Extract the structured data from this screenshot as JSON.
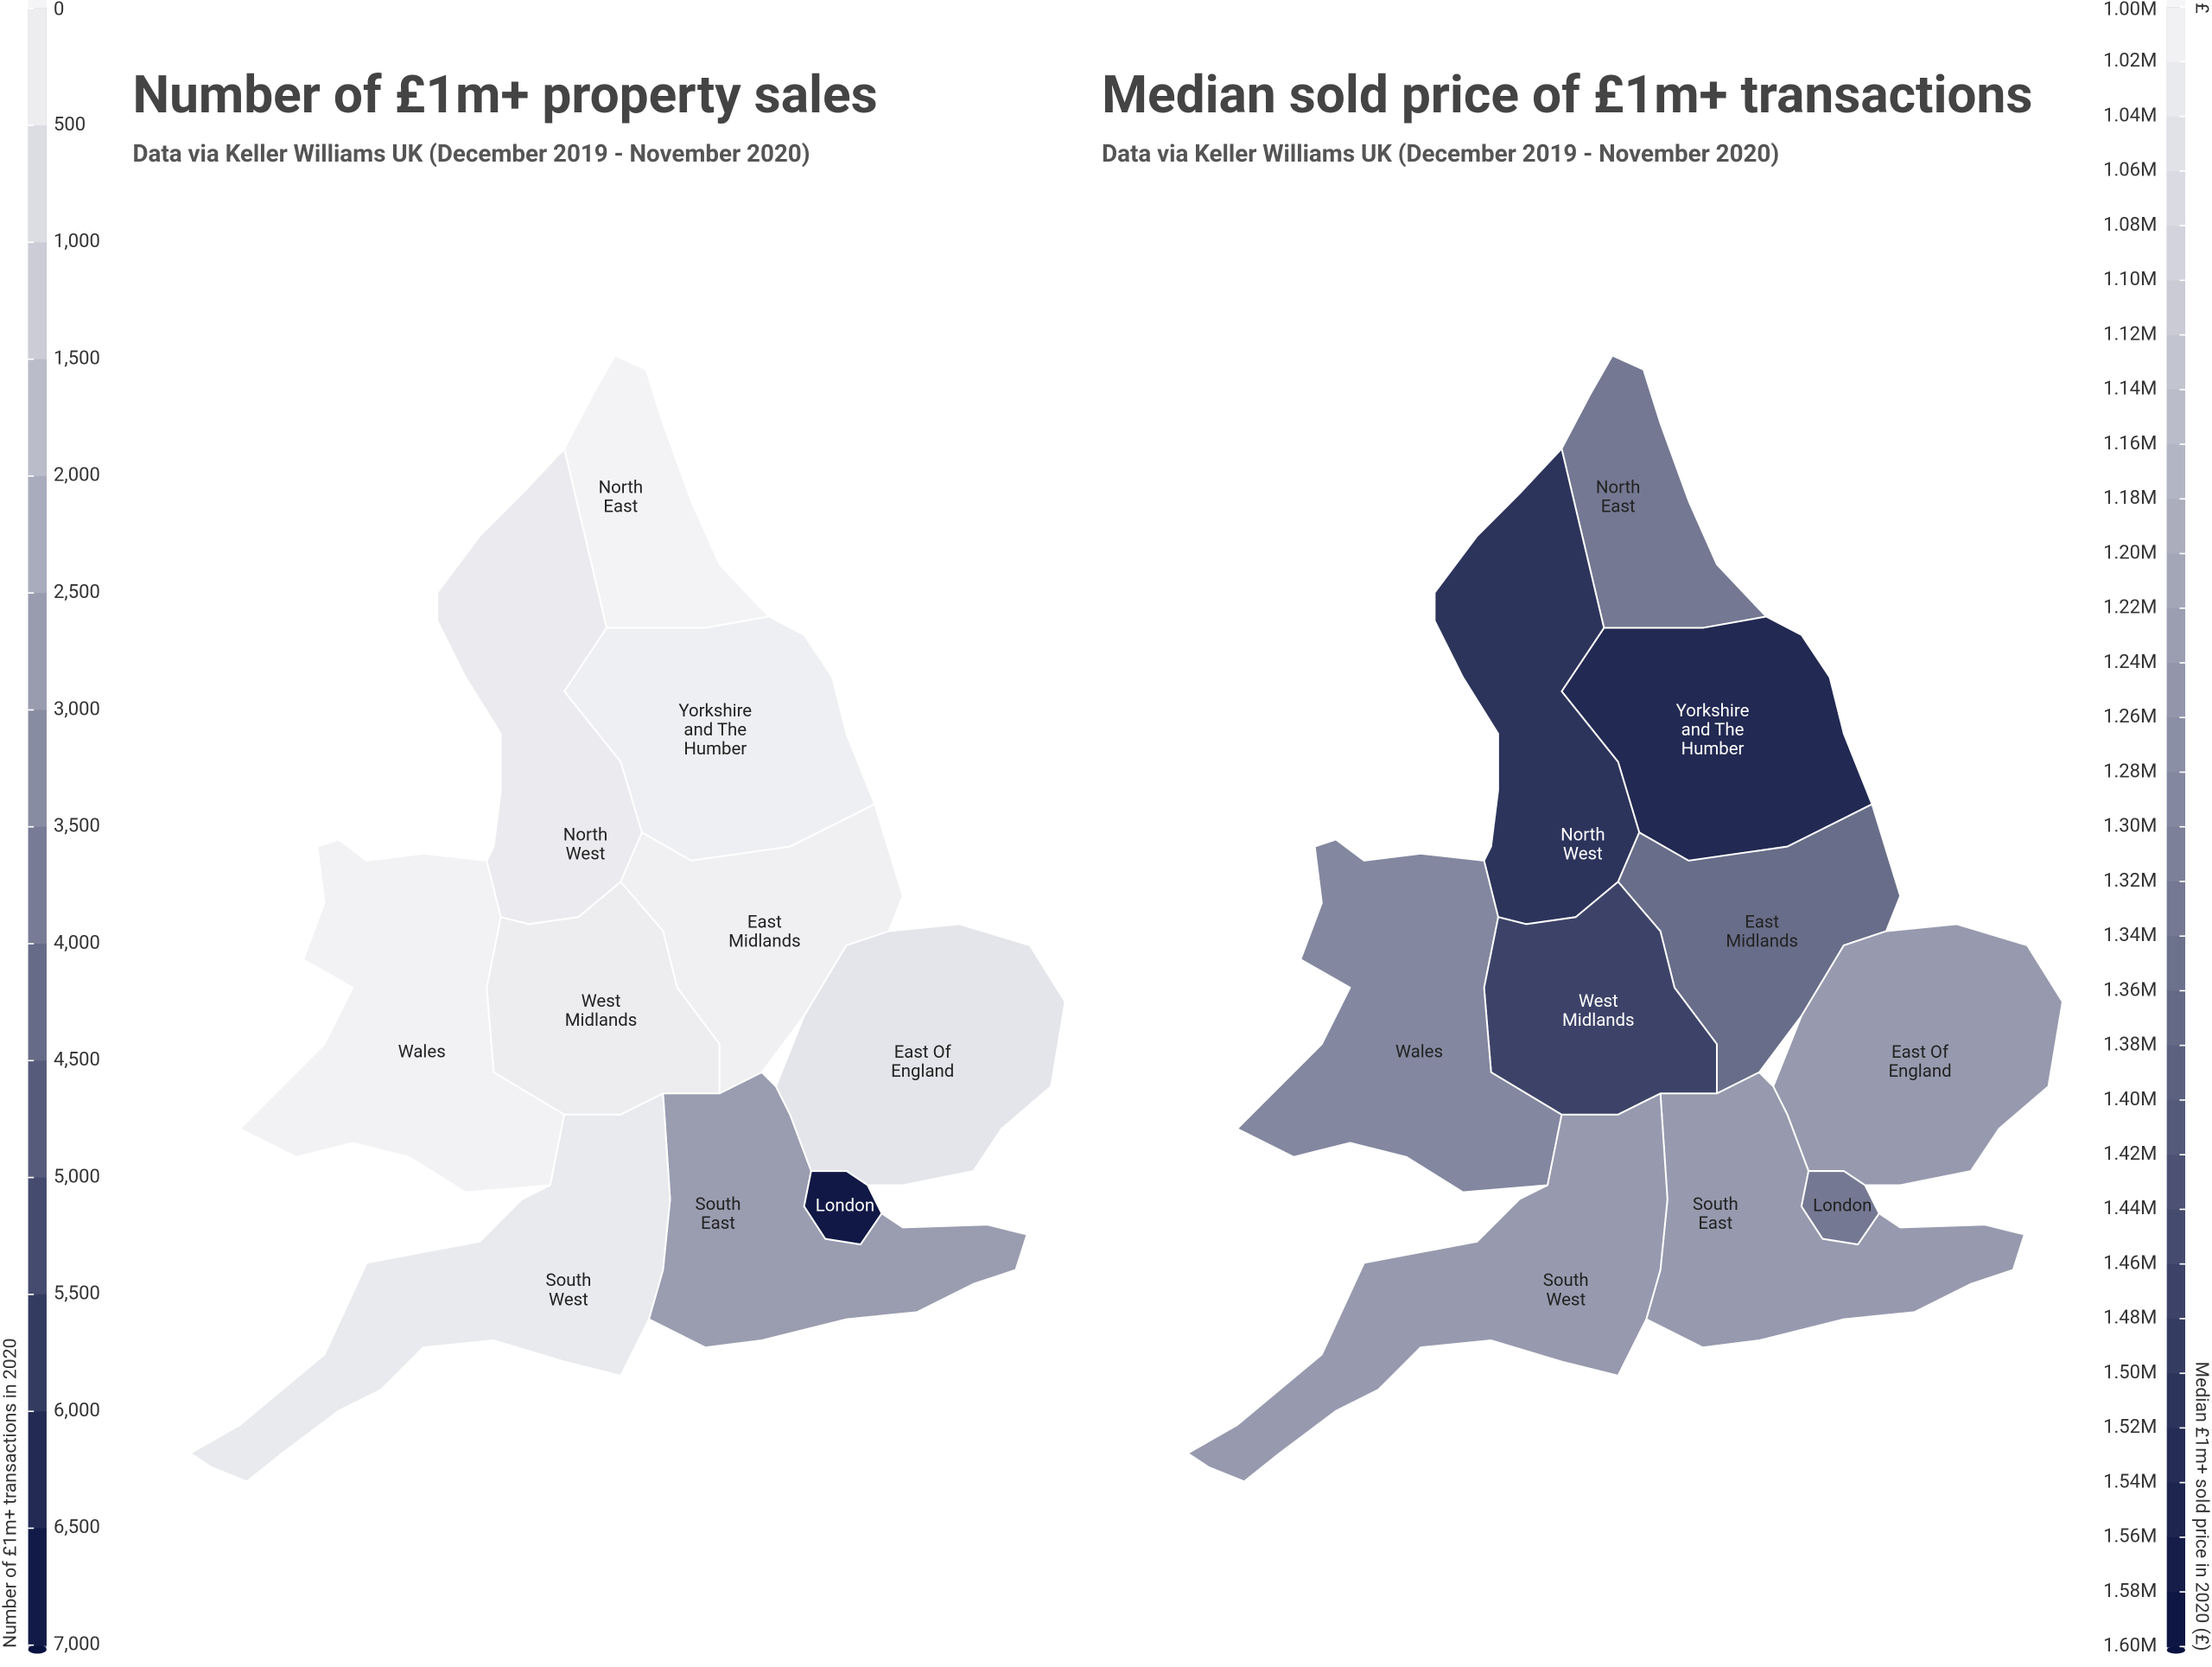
{
  "maps": [
    {
      "title": "Number of £1m+ property sales",
      "subtitle": "Data via Keller Williams UK (December 2019 - November 2020)",
      "legend": {
        "title": "Number of £1m+ transactions in 2020",
        "lim": [
          0,
          7000
        ],
        "ticks": [
          0,
          500,
          {
            "value": 1000,
            "label": "1,000"
          },
          {
            "value": 1500,
            "label": "1,500"
          },
          {
            "value": 2000,
            "label": "2,000"
          },
          {
            "value": 2500,
            "label": "2,500"
          },
          {
            "value": 3000,
            "label": "3,000"
          },
          {
            "value": 3500,
            "label": "3,500"
          },
          {
            "value": 4000,
            "label": "4,000"
          },
          {
            "value": 4500,
            "label": "4,500"
          },
          {
            "value": 5000,
            "label": "5,000"
          },
          {
            "value": 5500,
            "label": "5,500"
          },
          {
            "value": 6000,
            "label": "6,000"
          },
          {
            "value": 6500,
            "label": "6,500"
          },
          {
            "value": 7000,
            "label": "7,000"
          }
        ],
        "colors": [
          "#f5f5f7",
          "#0a1240"
        ]
      },
      "regions": [
        {
          "label": [
            "North",
            "East"
          ],
          "value": 60
        },
        {
          "label": [
            "Yorkshire",
            "and The",
            "Humber"
          ],
          "value": 200
        },
        {
          "label": [
            "North",
            "West"
          ],
          "value": 300
        },
        {
          "label": [
            "East",
            "Midlands"
          ],
          "value": 150
        },
        {
          "label": [
            "West",
            "Midlands"
          ],
          "value": 250
        },
        {
          "label": [
            "Wales"
          ],
          "value": 80
        },
        {
          "label": [
            "East Of",
            "England"
          ],
          "value": 500
        },
        {
          "label": [
            "South",
            "East"
          ],
          "value": 2700
        },
        {
          "label": [
            "London"
          ],
          "value": 6800
        },
        {
          "label": [
            "South",
            "West"
          ],
          "value": 350
        }
      ]
    },
    {
      "title": "Median sold price of £1m+ transactions",
      "subtitle": "Data via Keller Williams UK (December 2019 - November 2020)",
      "legend": {
        "title": "Median £1m+ sold price in 2020 (£)",
        "unit": "£",
        "lim": [
          1000000,
          1600000
        ],
        "ticks": [
          {
            "value": 1000000,
            "label": "1.00M"
          },
          {
            "value": 1020000,
            "label": "1.02M"
          },
          {
            "value": 1040000,
            "label": "1.04M"
          },
          {
            "value": 1060000,
            "label": "1.06M"
          },
          {
            "value": 1080000,
            "label": "1.08M"
          },
          {
            "value": 1100000,
            "label": "1.10M"
          },
          {
            "value": 1120000,
            "label": "1.12M"
          },
          {
            "value": 1140000,
            "label": "1.14M"
          },
          {
            "value": 1160000,
            "label": "1.16M"
          },
          {
            "value": 1180000,
            "label": "1.18M"
          },
          {
            "value": 1200000,
            "label": "1.20M"
          },
          {
            "value": 1220000,
            "label": "1.22M"
          },
          {
            "value": 1240000,
            "label": "1.24M"
          },
          {
            "value": 1260000,
            "label": "1.26M"
          },
          {
            "value": 1280000,
            "label": "1.28M"
          },
          {
            "value": 1300000,
            "label": "1.30M"
          },
          {
            "value": 1320000,
            "label": "1.32M"
          },
          {
            "value": 1340000,
            "label": "1.34M"
          },
          {
            "value": 1360000,
            "label": "1.36M"
          },
          {
            "value": 1380000,
            "label": "1.38M"
          },
          {
            "value": 1400000,
            "label": "1.40M"
          },
          {
            "value": 1420000,
            "label": "1.42M"
          },
          {
            "value": 1440000,
            "label": "1.44M"
          },
          {
            "value": 1460000,
            "label": "1.46M"
          },
          {
            "value": 1480000,
            "label": "1.48M"
          },
          {
            "value": 1500000,
            "label": "1.50M"
          },
          {
            "value": 1520000,
            "label": "1.52M"
          },
          {
            "value": 1540000,
            "label": "1.54M"
          },
          {
            "value": 1560000,
            "label": "1.56M"
          },
          {
            "value": 1580000,
            "label": "1.58M"
          },
          {
            "value": 1600000,
            "label": "1.60M"
          }
        ],
        "colors": [
          "#f5f5f7",
          "#0a1240"
        ]
      },
      "regions": [
        {
          "label": [
            "North",
            "East"
          ],
          "value": 1330000
        },
        {
          "label": [
            "Yorkshire",
            "and The",
            "Humber"
          ],
          "value": 1540000
        },
        {
          "label": [
            "North",
            "West"
          ],
          "value": 1510000
        },
        {
          "label": [
            "East",
            "Midlands"
          ],
          "value": 1360000
        },
        {
          "label": [
            "West",
            "Midlands"
          ],
          "value": 1470000
        },
        {
          "label": [
            "Wales"
          ],
          "value": 1290000
        },
        {
          "label": [
            "East Of",
            "England"
          ],
          "value": 1240000
        },
        {
          "label": [
            "South",
            "East"
          ],
          "value": 1240000
        },
        {
          "label": [
            "London"
          ],
          "value": 1330000
        },
        {
          "label": [
            "South",
            "West"
          ],
          "value": 1240000
        }
      ]
    }
  ]
}
